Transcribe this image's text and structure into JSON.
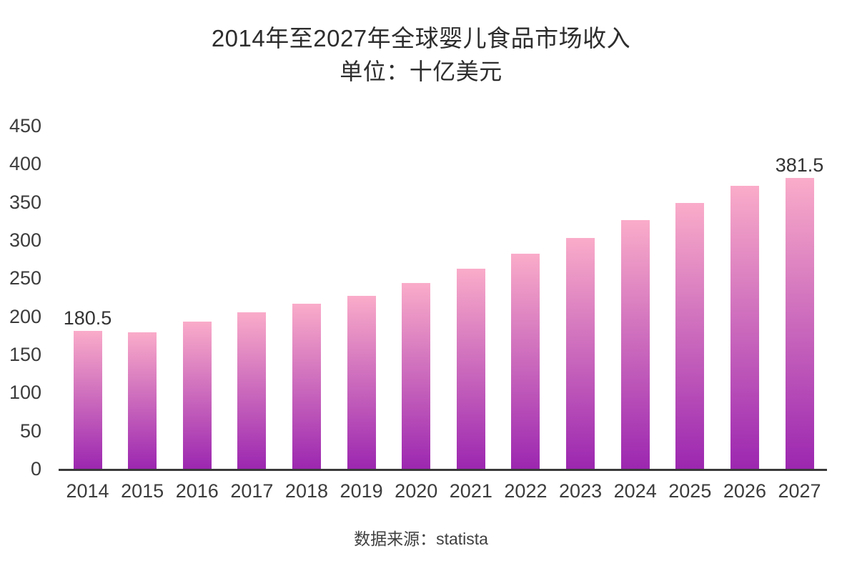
{
  "title": {
    "line1": "2014年至2027年全球婴儿食品市场收入",
    "line2": "单位：十亿美元"
  },
  "source": {
    "text": "数据来源：statista"
  },
  "colors": {
    "bar_gradient_top": "#FAACC9",
    "bar_gradient_bottom": "#9C27B0",
    "axis_line": "#3A3A3A",
    "tick_text": "#3C3C3C",
    "title_text": "#2D2D2D",
    "value_label_text": "#333333"
  },
  "chart_data": {
    "type": "bar",
    "title": "2014年至2027年全球婴儿食品市场收入",
    "subtitle": "单位：十亿美元",
    "source": "数据来源：statista",
    "categories": [
      "2014",
      "2015",
      "2016",
      "2017",
      "2018",
      "2019",
      "2020",
      "2021",
      "2022",
      "2023",
      "2024",
      "2025",
      "2026",
      "2027"
    ],
    "values": [
      180.5,
      179,
      193.5,
      205,
      217,
      227,
      243.5,
      262.5,
      282.5,
      303,
      326.5,
      348.5,
      371.5,
      381.5
    ],
    "bar_labels": {
      "2014": "180.5",
      "2027": "381.5"
    },
    "xlabel": "",
    "ylabel": "",
    "ylim": [
      0,
      450
    ],
    "ytick_step": 50,
    "yticks": [
      0,
      50,
      100,
      150,
      200,
      250,
      300,
      350,
      400,
      450
    ],
    "grid": false,
    "legend": false
  }
}
